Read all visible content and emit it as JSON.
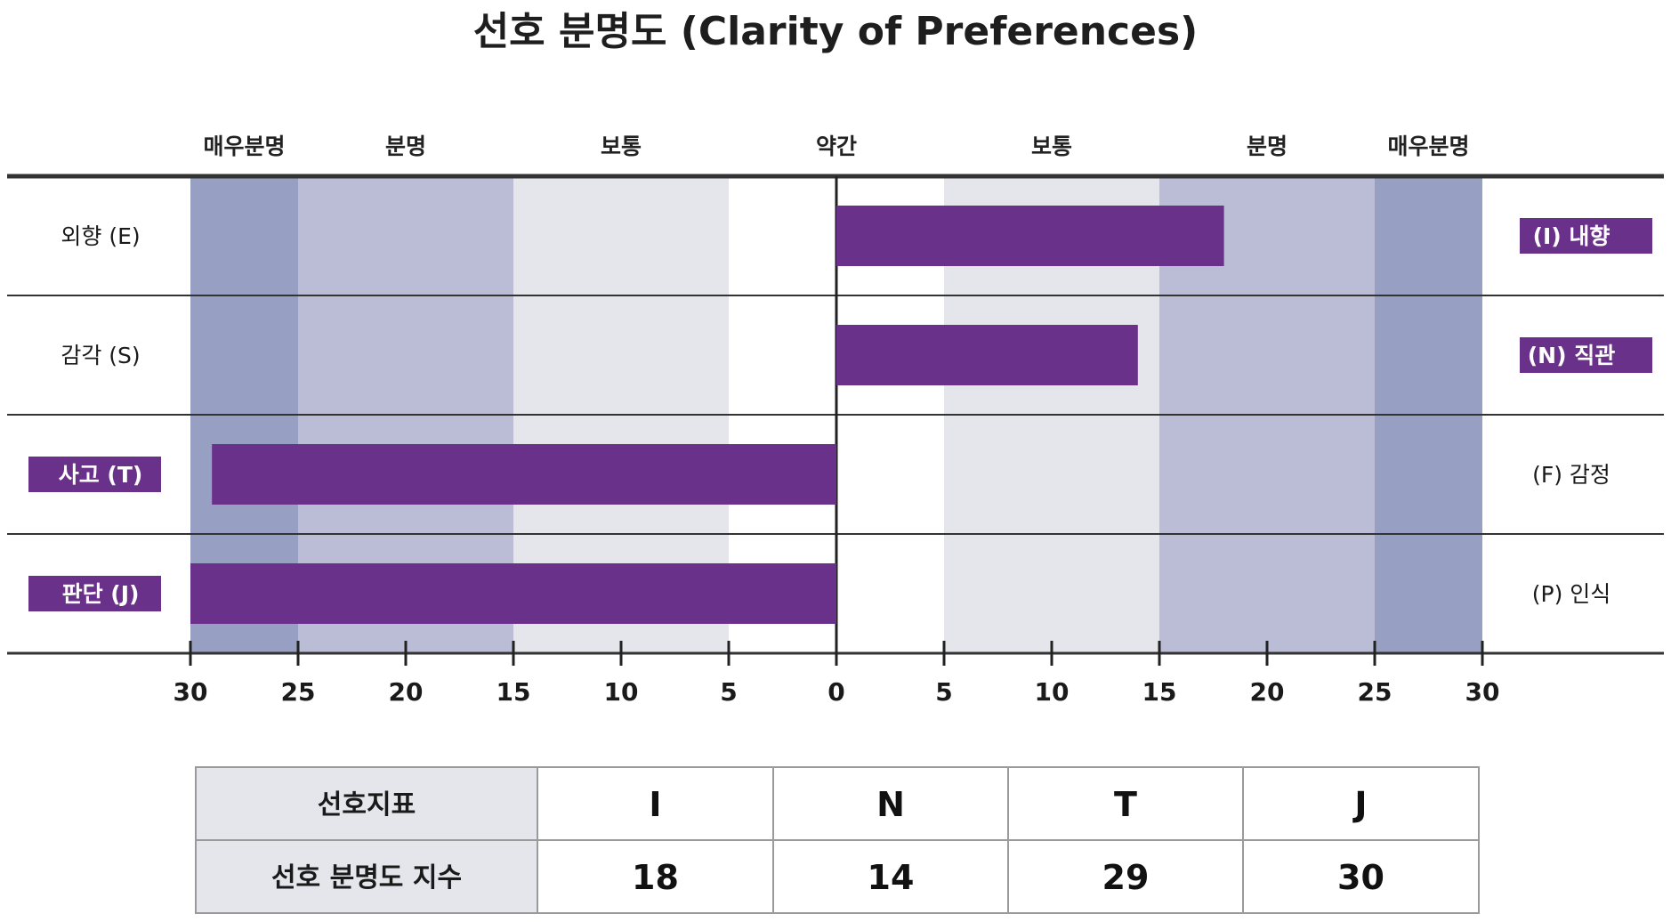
{
  "chart_data": {
    "type": "bar",
    "orientation": "diverging-horizontal",
    "title": "선호 분명도 (Clarity of Preferences)",
    "zones": [
      "매우분명",
      "분명",
      "보통",
      "약간",
      "보통",
      "분명",
      "매우분명"
    ],
    "x_ticks": [
      "30",
      "25",
      "20",
      "15",
      "10",
      "5",
      "0",
      "5",
      "10",
      "15",
      "20",
      "25",
      "30"
    ],
    "xlim": [
      -30,
      30
    ],
    "rows": [
      {
        "left_label": "외향 (E)",
        "right_label": "(I) 내향",
        "side": "right",
        "value": 18
      },
      {
        "left_label": "감각 (S)",
        "right_label": "(N) 직관",
        "side": "right",
        "value": 14
      },
      {
        "left_label": "사고 (T)",
        "right_label": "(F) 감정",
        "side": "left",
        "value": 29
      },
      {
        "left_label": "판단 (J)",
        "right_label": "(P) 인식",
        "side": "left",
        "value": 30
      }
    ],
    "bar_color": "#6a318a",
    "zone_colors": {
      "very_clear": "#97a0c2",
      "clear": "#babdd5",
      "moderate": "#e5e6ec",
      "slight": "#ffffff"
    }
  },
  "table": {
    "header_label": "선호지표",
    "value_label": "선호 분명도 지수",
    "columns": [
      "I",
      "N",
      "T",
      "J"
    ],
    "values": [
      "18",
      "14",
      "29",
      "30"
    ]
  }
}
